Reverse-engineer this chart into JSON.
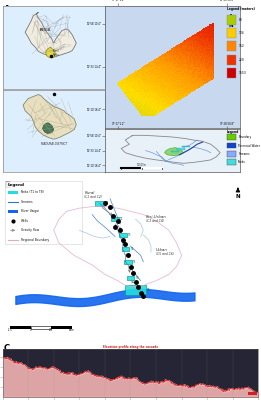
{
  "panel_a_label": "A",
  "panel_b_label": "B",
  "panel_c_label": "C",
  "figure_bg": "#ffffff",
  "dem_legend_values": [
    "83",
    "134",
    "162",
    "220",
    "1653"
  ],
  "dem_leg_colors": [
    "#aacc00",
    "#ffcc00",
    "#ff8800",
    "#ee3300",
    "#cc0000"
  ],
  "legend2_items": [
    "Boundary",
    "Perennial Water",
    "Streams",
    "Tanks"
  ],
  "legend2_colors": [
    "#66cc00",
    "#1144cc",
    "#88aaff",
    "#44dddd"
  ],
  "elev_profile_line_color": "#cc2222",
  "elev_profile_fill_color": "#ffbbbb",
  "elev_profile_bg": "#1e1e2e",
  "india_map_bg": "#f0ece0",
  "india_border": "#888888",
  "tn_map_bg": "#e8dfc0",
  "tn_district_bg": "#ddd4a8",
  "tn_district_border": "#aaa080",
  "tn_highlight": "#4a7a5a",
  "india_highlight": "#e8d840",
  "panel_c_dark_bg": "#252535",
  "dem_bg": "#c8d8ee",
  "ws_bg": "#e8f0f8"
}
